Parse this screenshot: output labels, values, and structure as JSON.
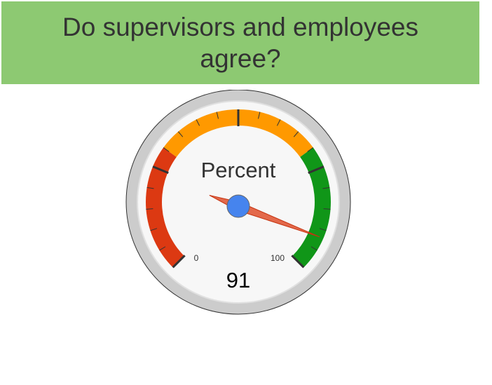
{
  "title": "Do supervisors and employees agree?",
  "chart_data": {
    "type": "gauge",
    "label": "Percent",
    "value": 91,
    "min": 0,
    "max": 100,
    "min_label": "0",
    "max_label": "100",
    "value_label": "91",
    "bands": [
      {
        "from": 0,
        "to": 30,
        "color": "#dc3912"
      },
      {
        "from": 30,
        "to": 70,
        "color": "#ff9900"
      },
      {
        "from": 70,
        "to": 100,
        "color": "#109618"
      }
    ],
    "major_ticks": 5,
    "minor_ticks_per_major": 5
  },
  "colors": {
    "banner": "#8dc972",
    "needle": "#dc3912",
    "hub": "#4684ee"
  }
}
